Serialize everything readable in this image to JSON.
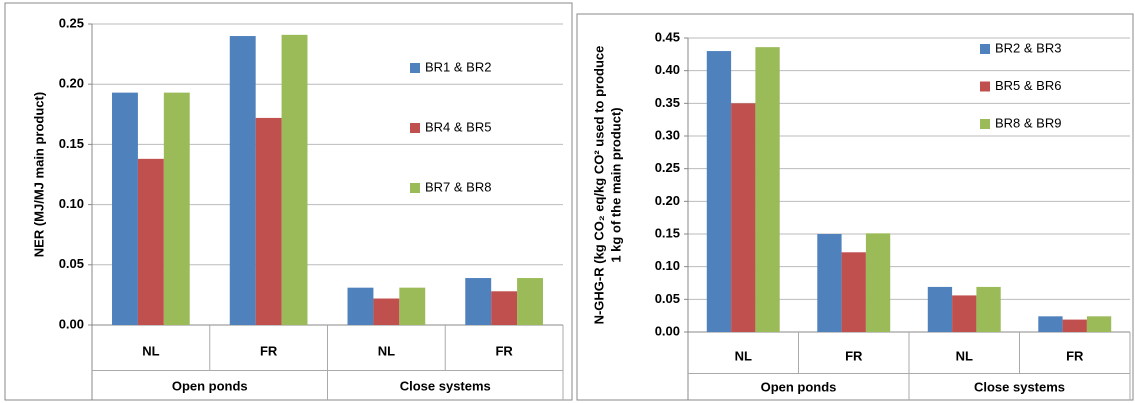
{
  "chart_data": [
    {
      "type": "bar",
      "ylabel": [
        "NER (MJ/MJ main product)"
      ],
      "categories": [
        "NL",
        "FR",
        "NL",
        "FR"
      ],
      "groups": [
        "Open ponds",
        "Close systems"
      ],
      "series": [
        {
          "name": "BR1 & BR2",
          "color": "#4f81bd",
          "values": [
            0.193,
            0.24,
            0.031,
            0.039
          ]
        },
        {
          "name": "BR4 & BR5",
          "color": "#c0504d",
          "values": [
            0.138,
            0.172,
            0.022,
            0.028
          ]
        },
        {
          "name": "BR7 & BR8",
          "color": "#9bbb59",
          "values": [
            0.193,
            0.241,
            0.031,
            0.039
          ]
        }
      ],
      "ylim": [
        0,
        0.25
      ],
      "yticks": [
        {
          "value": 0,
          "label": "0.00"
        },
        {
          "value": 0.05,
          "label": "0.05"
        },
        {
          "value": 0.1,
          "label": "0.10"
        },
        {
          "value": 0.15,
          "label": "0.15"
        },
        {
          "value": 0.2,
          "label": "0.20"
        },
        {
          "value": 0.25,
          "label": "0.25"
        }
      ],
      "grid": true
    },
    {
      "type": "bar",
      "ylabel": [
        "N-GHG-R (kg CO₂ eq/kg CO² used to produce",
        "1 kg of the main product)"
      ],
      "categories": [
        "NL",
        "FR",
        "NL",
        "FR"
      ],
      "groups": [
        "Open ponds",
        "Close systems"
      ],
      "series": [
        {
          "name": "BR2 & BR3",
          "color": "#4f81bd",
          "values": [
            0.43,
            0.15,
            0.069,
            0.024
          ]
        },
        {
          "name": "BR5 & BR6",
          "color": "#c0504d",
          "values": [
            0.35,
            0.122,
            0.056,
            0.019
          ]
        },
        {
          "name": "BR8 & BR9",
          "color": "#9bbb59",
          "values": [
            0.436,
            0.151,
            0.069,
            0.024
          ]
        }
      ],
      "ylim": [
        0,
        0.45
      ],
      "yticks": [
        {
          "value": 0,
          "label": "0.00"
        },
        {
          "value": 0.05,
          "label": "0.05"
        },
        {
          "value": 0.1,
          "label": "0.10"
        },
        {
          "value": 0.15,
          "label": "0.15"
        },
        {
          "value": 0.2,
          "label": "0.20"
        },
        {
          "value": 0.25,
          "label": "0.25"
        },
        {
          "value": 0.3,
          "label": "0.30"
        },
        {
          "value": 0.35,
          "label": "0.35"
        },
        {
          "value": 0.4,
          "label": "0.40"
        },
        {
          "value": 0.45,
          "label": "0.45"
        }
      ],
      "grid": true
    }
  ]
}
